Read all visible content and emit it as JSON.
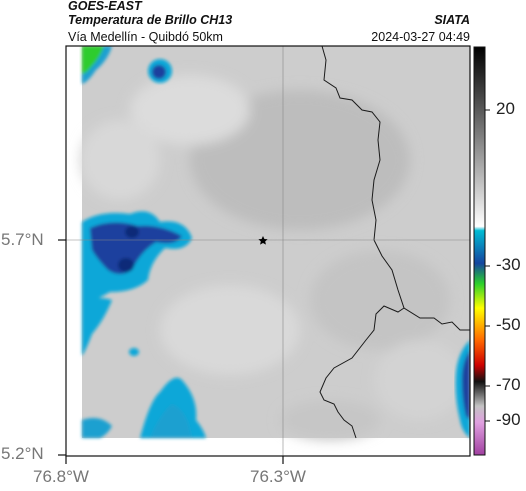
{
  "header": {
    "title": "GOES-EAST",
    "subtitle": "Temperatura de Brillo CH13",
    "source": "SIATA",
    "location": "Vía Medellín - Quibdó 50km",
    "datetime": "2024-03-27 04:49"
  },
  "map": {
    "lat_ticks": [
      "5.7°N",
      "5.2°N"
    ],
    "lon_ticks": [
      "76.8°W",
      "76.3°W"
    ],
    "marker_icon": "star-icon",
    "colors": {
      "cloud_light": "#d6d6d6",
      "cloud_mid": "#bdbdbd",
      "cold_blue": "#1a3f9e",
      "cyan": "#0aa7d8",
      "green": "#2ecc2e",
      "border_line": "#1a1a1a"
    }
  },
  "colorbar": {
    "ticks": [
      "20",
      "-30",
      "-50",
      "-70",
      "-90"
    ],
    "stops": [
      "#000000",
      "#ffffff",
      "#00bcd4",
      "#1545a0",
      "#2bd12b",
      "#ffff00",
      "#ff6600",
      "#cc0000",
      "#111111",
      "#c3c3c3",
      "#a040a0"
    ]
  }
}
